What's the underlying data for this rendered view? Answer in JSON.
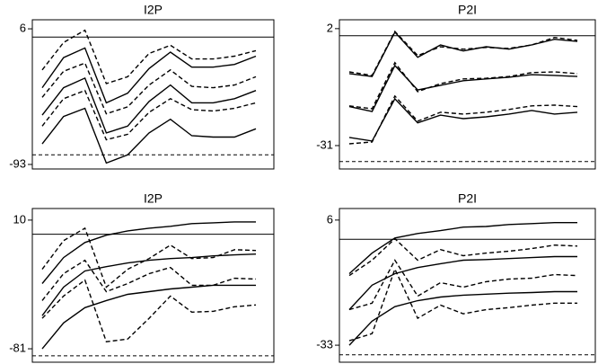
{
  "chart_data": [
    {
      "type": "line",
      "title": "I2P",
      "ylim": [
        -96.3,
        12.6
      ],
      "yticks": [
        6,
        -93
      ],
      "reference_lines": [
        {
          "value": 0,
          "style": "solid"
        },
        {
          "value": -86,
          "style": "dashed"
        }
      ],
      "series": [
        {
          "color": "#000000",
          "dashed": true,
          "values": [
            -24,
            -4,
            5,
            -34,
            -29,
            -12,
            -6,
            -16,
            -16,
            -14,
            -10
          ]
        },
        {
          "color": "#000000",
          "dashed": false,
          "values": [
            -37,
            -15,
            -8,
            -48,
            -41,
            -23,
            -11,
            -22,
            -22,
            -20,
            -14
          ]
        },
        {
          "color": "#000000",
          "dashed": true,
          "values": [
            -44,
            -25,
            -19,
            -56,
            -51,
            -35,
            -24,
            -36,
            -37,
            -35,
            -29
          ]
        },
        {
          "color": "#000000",
          "dashed": false,
          "values": [
            -57,
            -37,
            -30,
            -70,
            -65,
            -47,
            -35,
            -48,
            -48,
            -45,
            -39
          ]
        },
        {
          "color": "#000000",
          "dashed": true,
          "values": [
            -65,
            -45,
            -39,
            -75,
            -71,
            -55,
            -45,
            -53,
            -54,
            -52,
            -48
          ]
        },
        {
          "color": "#000000",
          "dashed": false,
          "values": [
            -78,
            -58,
            -52,
            -92,
            -86,
            -70,
            -60,
            -72,
            -73,
            -73,
            -67
          ]
        }
      ]
    },
    {
      "type": "line",
      "title": "P2I",
      "ylim": [
        -37.6,
        4.5
      ],
      "yticks": [
        2,
        -31
      ],
      "reference_lines": [
        {
          "value": 0,
          "style": "solid"
        },
        {
          "value": -35.5,
          "style": "dashed"
        }
      ],
      "series": [
        {
          "color": "#000000",
          "dashed": true,
          "values": [
            -10.2,
            -11.2,
            1.2,
            -5.6,
            -3.1,
            -3.8,
            -3.3,
            -3.6,
            -2.6,
            -0.5,
            -1.3
          ]
        },
        {
          "color": "#000000",
          "dashed": false,
          "values": [
            -10.7,
            -11.5,
            1,
            -6.1,
            -2.6,
            -4.3,
            -3.1,
            -3.8,
            -2.6,
            -1,
            -1.6
          ]
        },
        {
          "color": "#000000",
          "dashed": true,
          "values": [
            -19.8,
            -20.6,
            -7.6,
            -15.8,
            -13.5,
            -12.2,
            -12,
            -11.5,
            -10.4,
            -10.2,
            -10.7
          ]
        },
        {
          "color": "#000000",
          "dashed": false,
          "values": [
            -20,
            -21.4,
            -8.4,
            -15.3,
            -14,
            -12.7,
            -12.2,
            -11.7,
            -11,
            -11.2,
            -11.5
          ]
        },
        {
          "color": "#000000",
          "dashed": true,
          "values": [
            -30.5,
            -30,
            -17,
            -24.1,
            -21.6,
            -22.1,
            -21.6,
            -20.8,
            -19.8,
            -19.6,
            -20
          ]
        },
        {
          "color": "#000000",
          "dashed": false,
          "values": [
            -28.7,
            -29.7,
            -17.8,
            -24.6,
            -22.4,
            -23.4,
            -22.9,
            -22.1,
            -21.1,
            -22.1,
            -21.6
          ]
        }
      ]
    },
    {
      "type": "line",
      "title": "I2P",
      "ylim": [
        -90.5,
        18.2
      ],
      "yticks": [
        10,
        -81
      ],
      "reference_lines": [
        {
          "value": 0,
          "style": "solid"
        },
        {
          "value": -86,
          "style": "dashed"
        }
      ],
      "series": [
        {
          "color": "#000000",
          "dashed": false,
          "values": [
            -34.9,
            -16.5,
            -5.8,
            -0.7,
            2.4,
            4.3,
            5.6,
            7.5,
            8.1,
            8.7,
            8.7
          ]
        },
        {
          "color": "#000000",
          "dashed": true,
          "values": [
            -24.8,
            -4.5,
            4.3,
            -37.4,
            -24.8,
            -17.2,
            -7.7,
            -17.2,
            -16.5,
            -10.9,
            -11.5
          ]
        },
        {
          "color": "#000000",
          "dashed": true,
          "values": [
            -46.9,
            -27.9,
            -18.4,
            -40.6,
            -34.9,
            -27.9,
            -23.5,
            -36.1,
            -36.1,
            -31.1,
            -31.7
          ]
        },
        {
          "color": "#000000",
          "dashed": false,
          "values": [
            -57.6,
            -37.4,
            -26,
            -22.9,
            -20.3,
            -18.4,
            -17.2,
            -16.5,
            -15.3,
            -14.6,
            -14
          ]
        },
        {
          "color": "#000000",
          "dashed": true,
          "values": [
            -59.5,
            -43.7,
            -32.4,
            -76,
            -74.1,
            -59.5,
            -43.7,
            -55.1,
            -54.5,
            -51.3,
            -50
          ]
        },
        {
          "color": "#000000",
          "dashed": false,
          "values": [
            -81,
            -62.7,
            -51.9,
            -46.9,
            -42.5,
            -40.6,
            -38.7,
            -37.4,
            -36.1,
            -36.1,
            -36.1
          ]
        }
      ]
    },
    {
      "type": "line",
      "title": "P2I",
      "ylim": [
        -38.3,
        9.6
      ],
      "yticks": [
        6,
        -33
      ],
      "reference_lines": [
        {
          "value": 0,
          "style": "solid"
        },
        {
          "value": -36,
          "style": "dashed"
        }
      ],
      "series": [
        {
          "color": "#000000",
          "dashed": false,
          "values": [
            -10.7,
            -4.3,
            0.4,
            1.8,
            2.7,
            3.8,
            4,
            4.6,
            4.9,
            5.2,
            5.2
          ]
        },
        {
          "color": "#000000",
          "dashed": true,
          "values": [
            -11.3,
            -6.5,
            0.2,
            -6.5,
            -3.2,
            -5.1,
            -4.3,
            -3.7,
            -2.9,
            -1.8,
            -2.1
          ]
        },
        {
          "color": "#000000",
          "dashed": true,
          "values": [
            -21.9,
            -19.9,
            -6.5,
            -17.7,
            -13.5,
            -14.9,
            -13.2,
            -12.4,
            -12.1,
            -11,
            -11.3
          ]
        },
        {
          "color": "#000000",
          "dashed": false,
          "values": [
            -21.9,
            -14.3,
            -10.7,
            -8.8,
            -7.6,
            -6.5,
            -6.3,
            -6,
            -5.7,
            -5.4,
            -5.4
          ]
        },
        {
          "color": "#000000",
          "dashed": true,
          "values": [
            -31.6,
            -29.4,
            -9.3,
            -24.6,
            -20.5,
            -23.2,
            -21.9,
            -21.3,
            -20.5,
            -19.9,
            -19.9
          ]
        },
        {
          "color": "#000000",
          "dashed": false,
          "values": [
            -33,
            -25.5,
            -21,
            -19.1,
            -18,
            -17.4,
            -17.1,
            -16.8,
            -16.6,
            -16.3,
            -16.3
          ]
        }
      ]
    }
  ]
}
